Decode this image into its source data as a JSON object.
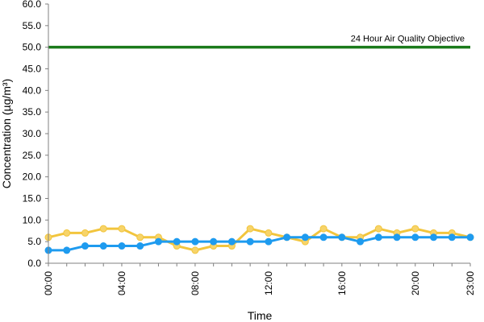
{
  "chart_data": {
    "type": "line",
    "xlabel": "Time",
    "ylabel": "Concentration (µg/m³)",
    "ylim": [
      0,
      60
    ],
    "yticks": [
      "0.0",
      "5.0",
      "10.0",
      "15.0",
      "20.0",
      "25.0",
      "30.0",
      "35.0",
      "40.0",
      "45.0",
      "50.0",
      "55.0",
      "60.0"
    ],
    "x": [
      "00:00",
      "01:00",
      "02:00",
      "03:00",
      "04:00",
      "05:00",
      "06:00",
      "07:00",
      "08:00",
      "09:00",
      "10:00",
      "11:00",
      "12:00",
      "13:00",
      "14:00",
      "15:00",
      "16:00",
      "17:00",
      "18:00",
      "19:00",
      "20:00",
      "21:00",
      "22:00",
      "23:00"
    ],
    "xticks": [
      "00:00",
      "04:00",
      "08:00",
      "12:00",
      "16:00",
      "20:00",
      "23:00"
    ],
    "grid": false,
    "series": [
      {
        "color": "#f2c53d",
        "marker_fill": "#f7d46a",
        "values": [
          6,
          7,
          7,
          8,
          8,
          6,
          6,
          4,
          3,
          4,
          4,
          8,
          7,
          6,
          5,
          8,
          6,
          6,
          8,
          7,
          8,
          7,
          7,
          6
        ]
      },
      {
        "color": "#1e9bef",
        "marker_fill": "#1e9bef",
        "values": [
          3,
          3,
          4,
          4,
          4,
          4,
          5,
          5,
          5,
          5,
          5,
          5,
          5,
          6,
          6,
          6,
          6,
          5,
          6,
          6,
          6,
          6,
          6,
          6
        ]
      }
    ],
    "reference_line": {
      "value": 50,
      "color": "#1a7a1a",
      "label": "24 Hour Air Quality Objective"
    }
  }
}
